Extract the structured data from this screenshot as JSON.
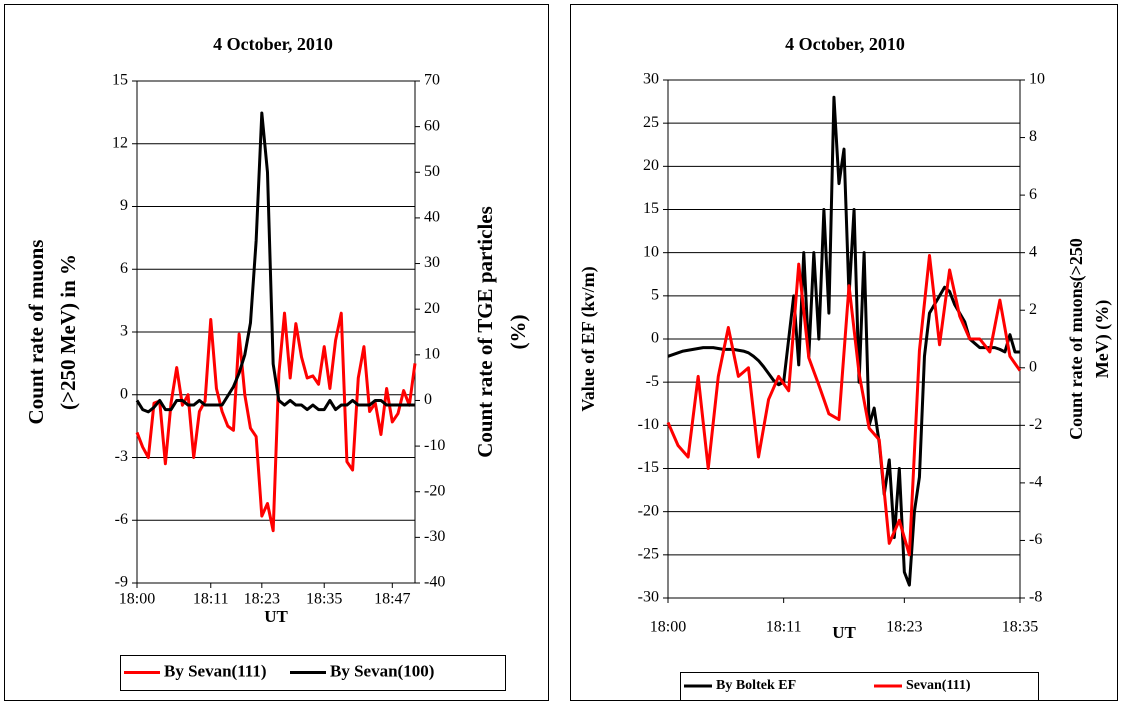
{
  "chart_data": [
    {
      "type": "line",
      "title": "4 October, 2010",
      "xlabel": "UT",
      "ylabel": [
        "Count rate of muons",
        "(>250 MeV) in %"
      ],
      "y2label": [
        "Count rate of TGE  particles",
        "(%)"
      ],
      "categories": [
        "18:00",
        null,
        null,
        null,
        null,
        null,
        null,
        null,
        null,
        null,
        null,
        null,
        null,
        "18:11",
        null,
        null,
        null,
        null,
        null,
        null,
        null,
        null,
        "18:23",
        null,
        null,
        null,
        null,
        null,
        null,
        null,
        null,
        null,
        null,
        "18:35",
        null,
        null,
        null,
        null,
        null,
        null,
        null,
        null,
        null,
        null,
        null,
        "18:47",
        null,
        null,
        null,
        null
      ],
      "series": [
        {
          "name": "By Sevan(111)",
          "color": "#ff0000",
          "axis": "y",
          "values": [
            -1.8,
            -2.5,
            -3.0,
            -0.4,
            -0.3,
            -3.3,
            -0.4,
            1.3,
            -0.5,
            0.0,
            -3.0,
            -0.8,
            -0.3,
            3.6,
            0.3,
            -0.8,
            -1.5,
            -1.7,
            2.9,
            0.0,
            -1.6,
            -2.0,
            -5.8,
            -5.2,
            -6.5,
            1.0,
            3.9,
            0.8,
            3.4,
            1.8,
            0.8,
            0.9,
            0.5,
            2.3,
            0.3,
            2.6,
            3.9,
            -3.2,
            -3.6,
            0.8,
            2.3,
            -0.8,
            -0.4,
            -1.9,
            0.3,
            -1.3,
            -0.9,
            0.2,
            -0.5,
            1.5
          ]
        },
        {
          "name": "By Sevan(100)",
          "color": "#000000",
          "axis": "y2",
          "values": [
            0,
            -2,
            -2.5,
            -1.5,
            0,
            -2,
            -2,
            0,
            0,
            -1,
            -1,
            0,
            -1,
            -1,
            -1,
            -1,
            1,
            3,
            6,
            10,
            17,
            35,
            63,
            50,
            8,
            0,
            -1,
            0,
            -1,
            -1,
            -2,
            -1,
            -2,
            -2,
            0,
            -2,
            -1,
            -1,
            0,
            -1,
            -1,
            -1,
            0,
            0,
            -1,
            -1,
            -1,
            -1,
            -1,
            -1
          ]
        }
      ],
      "ylim": [
        -9,
        15
      ],
      "yticks": [
        -9,
        -6,
        -3,
        0,
        3,
        6,
        9,
        12,
        15
      ],
      "y2lim": [
        -40,
        70
      ],
      "y2ticks": [
        -40,
        -30,
        -20,
        -10,
        0,
        10,
        20,
        30,
        40,
        50,
        60,
        70
      ],
      "grid": true,
      "legend": "bottom"
    },
    {
      "type": "line",
      "title": "4 October, 2010",
      "xlabel": "UT",
      "ylabel": [
        "Value of EF (kv/m)"
      ],
      "y2label": [
        "Count rate of muons(>250",
        "MeV) (%)"
      ],
      "categories": [
        "18:00",
        null,
        null,
        null,
        null,
        null,
        null,
        null,
        null,
        null,
        null,
        null,
        null,
        null,
        null,
        null,
        null,
        null,
        null,
        null,
        null,
        null,
        null,
        "18:11",
        null,
        null,
        null,
        null,
        null,
        null,
        null,
        null,
        null,
        null,
        null,
        null,
        null,
        null,
        null,
        null,
        null,
        null,
        null,
        null,
        null,
        null,
        null,
        "18:23",
        null,
        null,
        null,
        null,
        null,
        null,
        null,
        null,
        null,
        null,
        null,
        null,
        null,
        null,
        null,
        null,
        null,
        null,
        null,
        null,
        null,
        null,
        "18:35"
      ],
      "series": [
        {
          "name": "By Boltek EF",
          "color": "#000000",
          "axis": "y",
          "values": [
            -2,
            -1.8,
            -1.6,
            -1.4,
            -1.3,
            -1.2,
            -1.1,
            -1.0,
            -1.0,
            -1.0,
            -1.1,
            -1.2,
            -1.2,
            -1.2,
            -1.3,
            -1.4,
            -1.6,
            -2.0,
            -2.5,
            -3.2,
            -4.0,
            -4.8,
            -5.3,
            -5,
            0,
            5,
            -3,
            10,
            -2,
            10,
            0,
            15,
            3,
            28,
            18,
            22,
            5,
            15,
            -5,
            10,
            -10,
            -8,
            -12,
            -18,
            -14,
            -23,
            -15,
            -27,
            -28.5,
            -20,
            -16,
            -2,
            3,
            4,
            5,
            6,
            5.5,
            4,
            3,
            2,
            0,
            -0.5,
            -1,
            -1,
            -1,
            -1,
            -1.2,
            -1.5,
            0.5,
            -1.5,
            -1.5
          ]
        },
        {
          "name": "Sevan(111)",
          "color": "#ff0000",
          "axis": "y2",
          "values": [
            -1.9,
            -2.3,
            -2.7,
            -2.9,
            -3.1,
            -1.7,
            -0.3,
            -1.9,
            -3.5,
            -1.9,
            -0.3,
            0.55,
            1.4,
            0.55,
            -0.3,
            -0.15,
            0,
            -1.55,
            -3.1,
            -2.1,
            -1.1,
            -0.7,
            -0.3,
            -0.55,
            -0.8,
            1.4,
            3.6,
            1.98,
            0.35,
            -0.13,
            -0.6,
            -1.1,
            -1.6,
            -1.7,
            -1.8,
            0.53,
            2.85,
            1.33,
            -0.2,
            -1.15,
            -2.1,
            -2.3,
            -2.5,
            -4.3,
            -6.1,
            -5.7,
            -5.3,
            -5.9,
            -6.5,
            -2.95,
            0.6,
            2.25,
            3.9,
            2.35,
            0.8,
            2.1,
            3.4,
            2.6,
            1.8,
            1.4,
            1.0,
            1.0,
            1.0,
            0.78,
            0.55,
            1.45,
            2.35,
            1.38,
            0.4,
            0.15,
            -0.1
          ]
        }
      ],
      "ylim": [
        -30,
        30
      ],
      "yticks": [
        -30,
        -25,
        -20,
        -15,
        -10,
        -5,
        0,
        5,
        10,
        15,
        20,
        25,
        30
      ],
      "y2lim": [
        -8,
        10
      ],
      "y2ticks": [
        -8,
        -6,
        -4,
        -2,
        0,
        2,
        4,
        6,
        8,
        10
      ],
      "grid": true,
      "legend": "bottom"
    }
  ]
}
